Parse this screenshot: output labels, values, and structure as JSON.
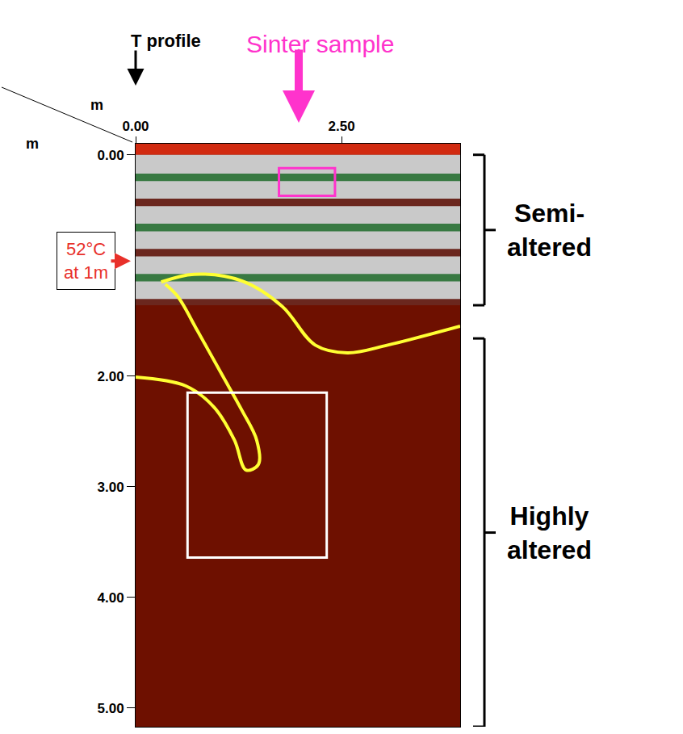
{
  "chart_data": {
    "type": "radargram",
    "x_label": "m",
    "y_label": "m",
    "xlim": [
      0,
      3.94
    ],
    "ylim": [
      -0.1,
      5.17
    ],
    "xticks": [
      {
        "value": 0,
        "label": "0.00"
      },
      {
        "value": 2.5,
        "label": "2.50"
      }
    ],
    "yticks": [
      {
        "value": 0,
        "label": "0.00"
      },
      {
        "value": 2,
        "label": "2.00"
      },
      {
        "value": 3,
        "label": "3.00"
      },
      {
        "value": 4,
        "label": "4.00"
      },
      {
        "value": 5,
        "label": "5.00"
      }
    ],
    "temperature_profile": {
      "text": "T profile",
      "x": 0
    },
    "temperature": {
      "lines": [
        "52°C",
        "at 1m"
      ],
      "depth": 0.96,
      "color": "#e8302a"
    },
    "sinter_sample": {
      "text": "Sinter sample",
      "x": 1.98,
      "color": "#ff33cc",
      "box_x": [
        1.74,
        2.42
      ],
      "box_y": [
        0.12,
        0.37
      ]
    },
    "zones": [
      {
        "lines": [
          "Semi-",
          "altered"
        ],
        "depth": [
          0,
          1.36
        ]
      },
      {
        "lines": [
          "Highly",
          "altered"
        ],
        "depth": [
          1.66,
          5.17
        ]
      }
    ],
    "interpretation_color": "#ffff33",
    "interpretation_lines": [
      {
        "x": [
          0.31,
          0.71,
          1.29,
          1.78,
          2.18,
          2.57,
          3.06,
          3.94
        ],
        "y": [
          1.15,
          1.08,
          1.14,
          1.37,
          1.72,
          1.79,
          1.72,
          1.55
        ]
      },
      {
        "x": [
          0,
          0.61,
          0.95,
          1.2,
          1.34,
          1.49,
          1.47,
          1.29,
          1.05,
          0.75,
          0.51,
          0.36
        ],
        "y": [
          2.01,
          2.09,
          2.28,
          2.58,
          2.85,
          2.8,
          2.58,
          2.31,
          1.99,
          1.59,
          1.28,
          1.17
        ]
      }
    ],
    "detail_box": {
      "x": [
        0.63,
        2.32
      ],
      "y": [
        2.15,
        3.64
      ],
      "color": "#ffffff"
    }
  }
}
